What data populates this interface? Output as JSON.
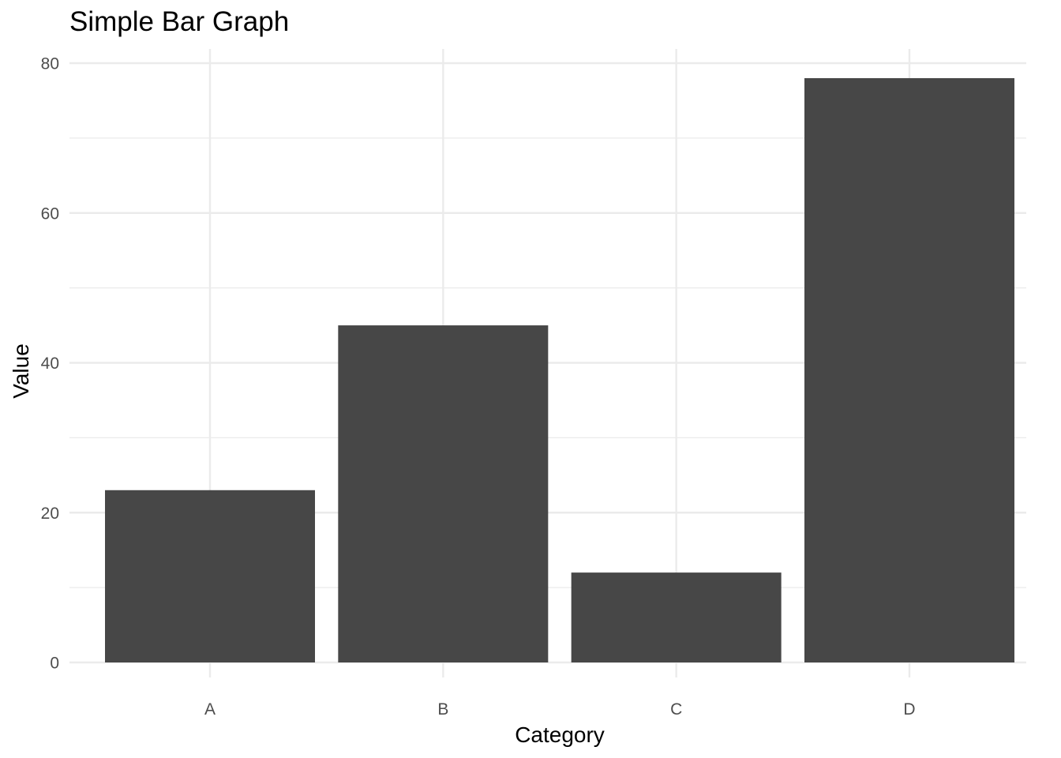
{
  "chart_data": {
    "type": "bar",
    "title": "Simple Bar Graph",
    "xlabel": "Category",
    "ylabel": "Value",
    "categories": [
      "A",
      "B",
      "C",
      "D"
    ],
    "values": [
      23,
      45,
      12,
      78
    ],
    "ylim": [
      0,
      80
    ],
    "y_ticks": [
      "0",
      "20",
      "40",
      "60",
      "80"
    ],
    "grid": true,
    "bar_color": "#474747",
    "grid_color": "#ebebeb"
  }
}
